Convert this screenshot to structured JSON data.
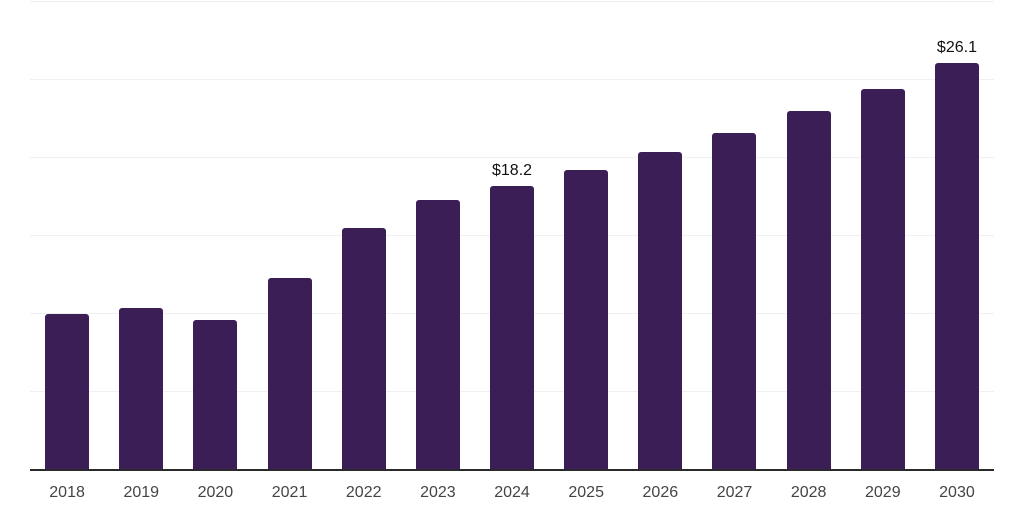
{
  "chart_data": {
    "type": "bar",
    "title": "",
    "xlabel": "",
    "ylabel": "",
    "categories": [
      "2018",
      "2019",
      "2020",
      "2021",
      "2022",
      "2023",
      "2024",
      "2025",
      "2026",
      "2027",
      "2028",
      "2029",
      "2030"
    ],
    "values": [
      10.0,
      10.4,
      9.6,
      12.3,
      15.5,
      17.3,
      18.2,
      19.2,
      20.4,
      21.6,
      23.0,
      24.4,
      26.1
    ],
    "data_labels": [
      "",
      "",
      "",
      "",
      "",
      "",
      "$18.2",
      "",
      "",
      "",
      "",
      "",
      "$26.1"
    ],
    "ylim": [
      0,
      30
    ],
    "grid_step": 5,
    "grid_on": true,
    "legend_position": "none",
    "colors": {
      "bar": "#341750",
      "value_label": "#111111",
      "tick_label": "#444444",
      "gridline": "#f0f0f3",
      "axis_line": "#2a2a2a",
      "background": "#ffffff"
    }
  }
}
